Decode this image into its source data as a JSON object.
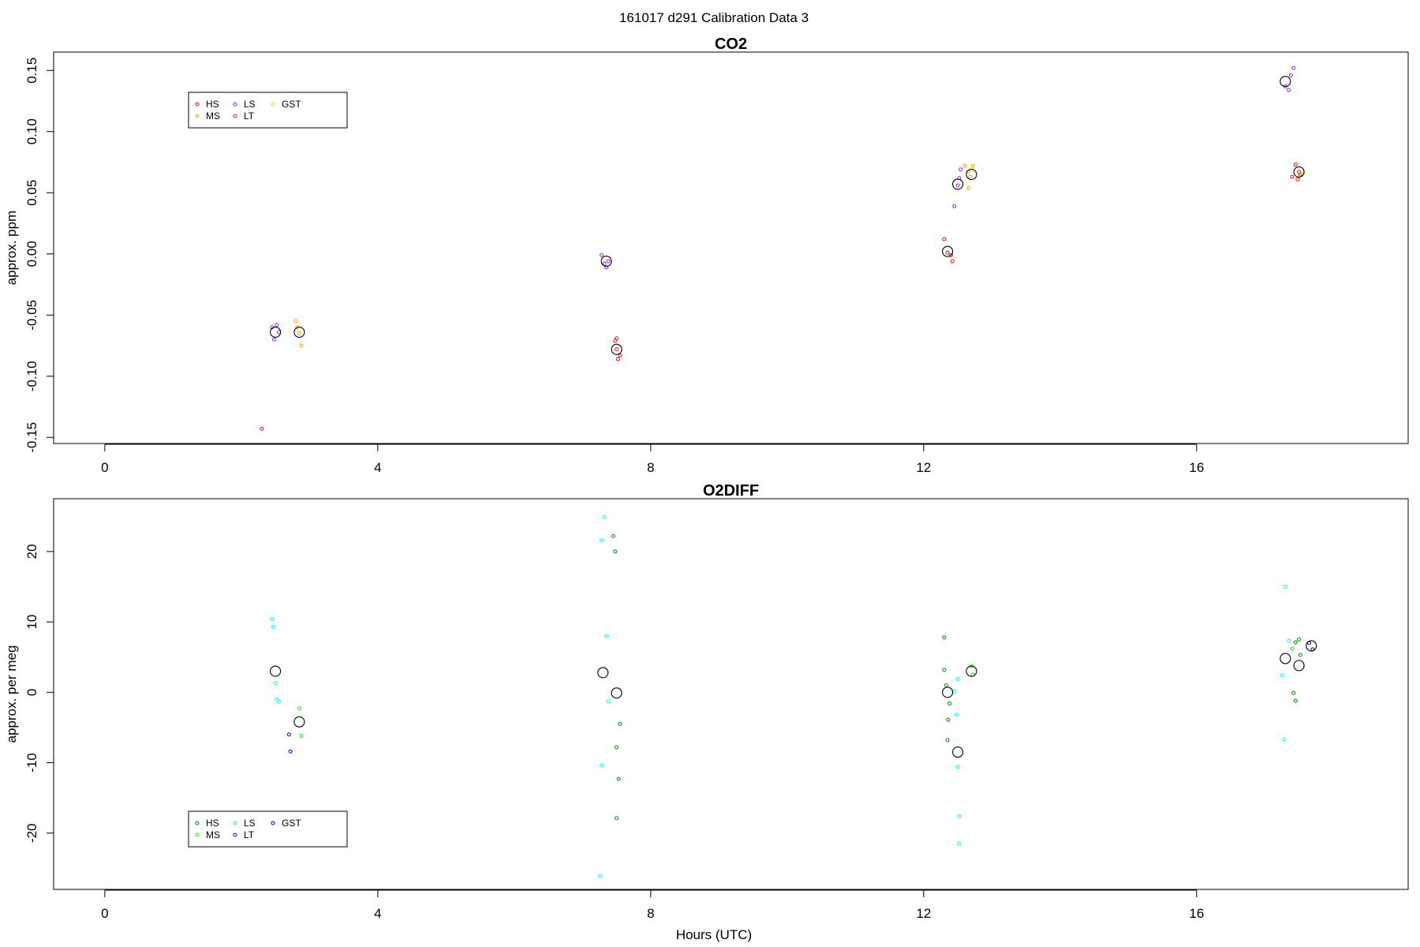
{
  "page_title": "161017   d291   Calibration Data 3",
  "x_axis_label": "Hours (UTC)",
  "chart_data": [
    {
      "type": "scatter",
      "title": "CO2",
      "ylabel": "approx. ppm",
      "xlim": [
        -0.75,
        19.1
      ],
      "ylim": [
        -0.155,
        0.165
      ],
      "xticks": [
        0,
        4,
        8,
        12,
        16
      ],
      "yticks": [
        -0.15,
        -0.1,
        -0.05,
        0.0,
        0.05,
        0.1,
        0.15
      ],
      "ytick_labels": [
        "-0.15",
        "-0.10",
        "-0.05",
        "0.00",
        "0.05",
        "0.10",
        "0.15"
      ],
      "legend": {
        "position": "top-left",
        "entries": [
          {
            "name": "HS",
            "color": "#ff0000"
          },
          {
            "name": "MS",
            "color": "#ffa500"
          },
          {
            "name": "LS",
            "color": "#a020f0"
          },
          {
            "name": "LT",
            "color": "#cd2626"
          },
          {
            "name": "GST",
            "color": "#ffd700"
          }
        ]
      },
      "series": [
        {
          "name": "HS",
          "color": "#ff0000",
          "points": [
            [
              2.3,
              -0.143
            ],
            [
              7.48,
              -0.071
            ],
            [
              7.52,
              -0.086
            ],
            [
              7.55,
              -0.083
            ],
            [
              7.5,
              -0.078
            ],
            [
              12.3,
              0.012
            ],
            [
              12.35,
              0.001
            ],
            [
              12.4,
              -0.001
            ],
            [
              12.42,
              -0.006
            ],
            [
              17.45,
              0.073
            ],
            [
              17.48,
              0.061
            ],
            [
              17.52,
              0.065
            ],
            [
              17.4,
              0.063
            ]
          ]
        },
        {
          "name": "MS",
          "color": "#ffa500",
          "points": [
            [
              2.8,
              -0.055
            ],
            [
              2.82,
              -0.06
            ],
            [
              2.85,
              -0.065
            ],
            [
              2.88,
              -0.075
            ],
            [
              12.6,
              0.072
            ],
            [
              12.65,
              0.067
            ],
            [
              12.66,
              0.054
            ],
            [
              12.72,
              0.072
            ],
            [
              12.68,
              0.063
            ]
          ]
        },
        {
          "name": "LS",
          "color": "#a020f0",
          "points": [
            [
              2.45,
              -0.06
            ],
            [
              2.48,
              -0.07
            ],
            [
              2.52,
              -0.058
            ],
            [
              2.55,
              -0.064
            ],
            [
              7.28,
              -0.001
            ],
            [
              7.32,
              -0.008
            ],
            [
              7.35,
              -0.011
            ],
            [
              7.38,
              -0.006
            ],
            [
              12.45,
              0.039
            ],
            [
              12.5,
              0.056
            ],
            [
              12.52,
              0.062
            ],
            [
              12.54,
              0.069
            ],
            [
              17.3,
              0.137
            ],
            [
              17.35,
              0.134
            ],
            [
              17.38,
              0.146
            ],
            [
              17.42,
              0.152
            ]
          ]
        },
        {
          "name": "LT",
          "color": "#cd2626",
          "points": [
            [
              7.5,
              -0.069
            ],
            [
              17.5,
              0.067
            ]
          ]
        },
        {
          "name": "GST",
          "color": "#ffd700",
          "points": [
            [
              12.7,
              0.069
            ],
            [
              17.55,
              0.066
            ]
          ]
        },
        {
          "name": "",
          "color": "#000000",
          "size": "large",
          "points": [
            [
              2.5,
              -0.064
            ],
            [
              2.85,
              -0.064
            ],
            [
              7.35,
              -0.006
            ],
            [
              7.5,
              -0.078
            ],
            [
              12.35,
              0.002
            ],
            [
              12.5,
              0.057
            ],
            [
              12.7,
              0.065
            ],
            [
              17.3,
              0.141
            ],
            [
              17.5,
              0.067
            ]
          ]
        }
      ]
    },
    {
      "type": "scatter",
      "title": "O2DIFF",
      "ylabel": "approx. per meg",
      "xlim": [
        -0.75,
        19.1
      ],
      "ylim": [
        -28,
        27.5
      ],
      "xticks": [
        0,
        4,
        8,
        12,
        16
      ],
      "yticks": [
        -20,
        -10,
        0,
        10,
        20
      ],
      "ytick_labels": [
        "-20",
        "-10",
        "0",
        "10",
        "20"
      ],
      "legend": {
        "position": "bottom-left",
        "entries": [
          {
            "name": "HS",
            "color": "#008b00"
          },
          {
            "name": "MS",
            "color": "#00ff00"
          },
          {
            "name": "LS",
            "color": "#00ffff"
          },
          {
            "name": "LT",
            "color": "#0000ff"
          },
          {
            "name": "GST",
            "color": "#00008b"
          }
        ]
      },
      "series": [
        {
          "name": "HS",
          "color": "#008b00",
          "points": [
            [
              7.45,
              22.2
            ],
            [
              7.48,
              20.0
            ],
            [
              7.55,
              -4.5
            ],
            [
              7.5,
              -7.8
            ],
            [
              7.53,
              -12.3
            ],
            [
              7.5,
              -17.9
            ],
            [
              12.3,
              7.8
            ],
            [
              12.3,
              3.2
            ],
            [
              12.33,
              1.0
            ],
            [
              12.38,
              -1.6
            ],
            [
              12.36,
              -3.9
            ],
            [
              12.35,
              -6.8
            ],
            [
              17.45,
              7.1
            ],
            [
              17.5,
              7.5
            ],
            [
              17.52,
              5.3
            ],
            [
              17.42,
              -0.1
            ],
            [
              17.45,
              -1.2
            ]
          ]
        },
        {
          "name": "MS",
          "color": "#00ff00",
          "points": [
            [
              2.85,
              -2.3
            ],
            [
              2.88,
              -6.2
            ],
            [
              12.7,
              3.7
            ],
            [
              12.72,
              2.5
            ],
            [
              17.4,
              6.2
            ]
          ]
        },
        {
          "name": "LS",
          "color": "#00ffff",
          "points": [
            [
              2.45,
              10.4
            ],
            [
              2.47,
              9.3
            ],
            [
              2.5,
              1.3
            ],
            [
              2.52,
              -1.0
            ],
            [
              2.55,
              -1.3
            ],
            [
              7.32,
              24.9
            ],
            [
              7.28,
              21.6
            ],
            [
              7.35,
              8.0
            ],
            [
              7.38,
              -1.3
            ],
            [
              7.28,
              -10.4
            ],
            [
              7.26,
              -26.1
            ],
            [
              12.5,
              1.9
            ],
            [
              12.45,
              0.1
            ],
            [
              12.48,
              -3.2
            ],
            [
              12.5,
              -10.6
            ],
            [
              12.52,
              -17.6
            ],
            [
              12.52,
              -21.5
            ],
            [
              17.3,
              15.0
            ],
            [
              17.35,
              7.3
            ],
            [
              17.25,
              2.4
            ],
            [
              17.28,
              -6.7
            ]
          ]
        },
        {
          "name": "LT",
          "color": "#0000ff",
          "points": [
            [
              2.7,
              -6.0
            ],
            [
              2.72,
              -8.4
            ]
          ]
        },
        {
          "name": "GST",
          "color": "#00008b",
          "points": [
            [
              17.65,
              7.0
            ],
            [
              17.7,
              6.1
            ]
          ]
        },
        {
          "name": "",
          "color": "#000000",
          "size": "large",
          "points": [
            [
              2.5,
              3.0
            ],
            [
              2.85,
              -4.2
            ],
            [
              7.3,
              2.8
            ],
            [
              7.5,
              -0.1
            ],
            [
              12.35,
              0.0
            ],
            [
              12.5,
              -8.5
            ],
            [
              12.7,
              3.0
            ],
            [
              17.3,
              4.8
            ],
            [
              17.5,
              3.8
            ],
            [
              17.68,
              6.6
            ]
          ]
        }
      ]
    }
  ]
}
